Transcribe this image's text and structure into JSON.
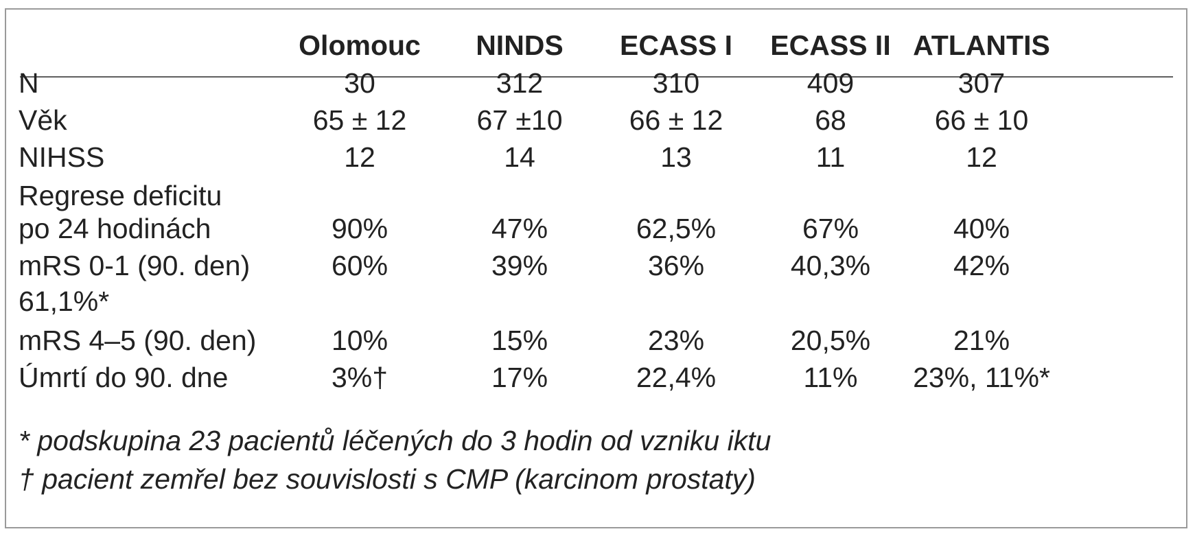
{
  "headers": [
    "Olomouc",
    "NINDS",
    "ECASS I",
    "ECASS II",
    "ATLANTIS"
  ],
  "rows": [
    {
      "label": "N",
      "values": [
        "30",
        "312",
        "310",
        "409",
        "307"
      ]
    },
    {
      "label": "Věk",
      "values": [
        "65 ±  12",
        "67 ±10",
        "66 ± 12",
        "68",
        "66 ± 10"
      ]
    },
    {
      "label": "NIHSS",
      "values": [
        "12",
        "14",
        "13",
        "11",
        "12"
      ]
    },
    {
      "label": "Regrese deficitu",
      "label2": "po 24 hodinách",
      "values": [
        "90%",
        "47%",
        "62,5%",
        "67%",
        "40%"
      ]
    },
    {
      "label": "mRS 0-1 (90. den)",
      "label2": "61,1%*",
      "values": [
        "60%",
        "39%",
        "36%",
        "40,3%",
        "42%"
      ]
    },
    {
      "label": "mRS 4–5 (90. den)",
      "values": [
        "10%",
        "15%",
        "23%",
        "20,5%",
        "21%"
      ]
    },
    {
      "label": "Úmrtí do 90. dne",
      "values": [
        "3%†",
        "17%",
        "22,4%",
        "11%",
        "23%, 11%*"
      ]
    }
  ],
  "footnotes": [
    "* podskupina 23 pacientů léčených do 3 hodin od vzniku iktu",
    "† pacient zemřel bez souvislosti s CMP (karcinom prostaty)"
  ]
}
